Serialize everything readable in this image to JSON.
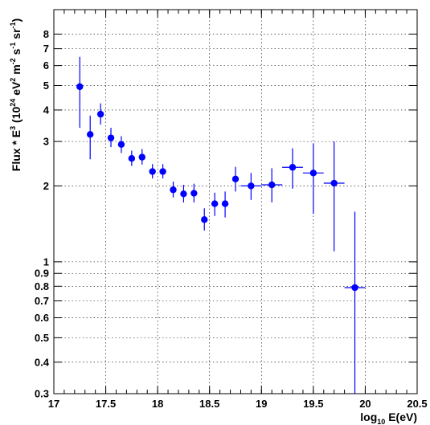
{
  "chart_data": {
    "type": "scatter",
    "xlabel": "log10 E(eV)",
    "xlabel_base": "log",
    "xlabel_sub": "10",
    "xlabel_rest": " E(eV)",
    "ylabel": {
      "prefix": "Flux * E",
      "exp_e": "3",
      "open": " (10",
      "exp_ten": "24",
      "units1": " eV",
      "exp_ev": "2",
      "units2": " m",
      "exp_m": "-2",
      "units3": " s",
      "exp_s": "-1",
      "units4": " sr",
      "exp_sr": "-1",
      "close": ")"
    },
    "xlim": [
      17,
      20.5
    ],
    "ylim": [
      0.3,
      10
    ],
    "yscale": "log",
    "grid": true,
    "marker_color": "#0000ff",
    "x_ticks": [
      {
        "value": 17,
        "label": "17"
      },
      {
        "value": 17.5,
        "label": "17.5"
      },
      {
        "value": 18,
        "label": "18"
      },
      {
        "value": 18.5,
        "label": "18.5"
      },
      {
        "value": 19,
        "label": "19"
      },
      {
        "value": 19.5,
        "label": "19.5"
      },
      {
        "value": 20,
        "label": "20"
      },
      {
        "value": 20.5,
        "label": "20.5"
      }
    ],
    "y_ticks": [
      {
        "value": 0.3,
        "label": "0.3"
      },
      {
        "value": 0.4,
        "label": "0.4"
      },
      {
        "value": 0.5,
        "label": "0.5"
      },
      {
        "value": 0.6,
        "label": "0.6"
      },
      {
        "value": 0.7,
        "label": "0.7"
      },
      {
        "value": 0.8,
        "label": "0.8"
      },
      {
        "value": 0.9,
        "label": "0.9"
      },
      {
        "value": 1,
        "label": "1"
      },
      {
        "value": 2,
        "label": "2"
      },
      {
        "value": 3,
        "label": "3"
      },
      {
        "value": 4,
        "label": "4"
      },
      {
        "value": 5,
        "label": "5"
      },
      {
        "value": 6,
        "label": "6"
      },
      {
        "value": 7,
        "label": "7"
      },
      {
        "value": 8,
        "label": "8"
      }
    ],
    "points": [
      {
        "x": 17.25,
        "y": 4.95,
        "ylo": 3.4,
        "yhi": 6.5,
        "xerr": 0.0
      },
      {
        "x": 17.35,
        "y": 3.2,
        "ylo": 2.55,
        "yhi": 3.8,
        "xerr": 0.0
      },
      {
        "x": 17.45,
        "y": 3.85,
        "ylo": 3.5,
        "yhi": 4.25,
        "xerr": 0.0
      },
      {
        "x": 17.55,
        "y": 3.1,
        "ylo": 2.85,
        "yhi": 3.4,
        "xerr": 0.0
      },
      {
        "x": 17.65,
        "y": 2.92,
        "ylo": 2.7,
        "yhi": 3.15,
        "xerr": 0.0
      },
      {
        "x": 17.75,
        "y": 2.57,
        "ylo": 2.4,
        "yhi": 2.76,
        "xerr": 0.0
      },
      {
        "x": 17.85,
        "y": 2.6,
        "ylo": 2.43,
        "yhi": 2.8,
        "xerr": 0.0
      },
      {
        "x": 17.95,
        "y": 2.28,
        "ylo": 2.14,
        "yhi": 2.44,
        "xerr": 0.0
      },
      {
        "x": 18.05,
        "y": 2.28,
        "ylo": 2.14,
        "yhi": 2.44,
        "xerr": 0.0
      },
      {
        "x": 18.15,
        "y": 1.93,
        "ylo": 1.8,
        "yhi": 2.08,
        "xerr": 0.0
      },
      {
        "x": 18.25,
        "y": 1.86,
        "ylo": 1.72,
        "yhi": 2.02,
        "xerr": 0.0
      },
      {
        "x": 18.35,
        "y": 1.87,
        "ylo": 1.72,
        "yhi": 2.04,
        "xerr": 0.0
      },
      {
        "x": 18.45,
        "y": 1.47,
        "ylo": 1.33,
        "yhi": 1.63,
        "xerr": 0.0
      },
      {
        "x": 18.55,
        "y": 1.7,
        "ylo": 1.52,
        "yhi": 1.88,
        "xerr": 0.0
      },
      {
        "x": 18.65,
        "y": 1.7,
        "ylo": 1.5,
        "yhi": 1.9,
        "xerr": 0.0
      },
      {
        "x": 18.75,
        "y": 2.13,
        "ylo": 1.9,
        "yhi": 2.38,
        "xerr": 0.0
      },
      {
        "x": 18.9,
        "y": 2.0,
        "ylo": 1.76,
        "yhi": 2.25,
        "xerr": 0.1
      },
      {
        "x": 19.1,
        "y": 2.02,
        "ylo": 1.72,
        "yhi": 2.35,
        "xerr": 0.1
      },
      {
        "x": 19.3,
        "y": 2.37,
        "ylo": 1.95,
        "yhi": 2.82,
        "xerr": 0.1
      },
      {
        "x": 19.5,
        "y": 2.25,
        "ylo": 1.55,
        "yhi": 2.95,
        "xerr": 0.1
      },
      {
        "x": 19.7,
        "y": 2.05,
        "ylo": 1.1,
        "yhi": 3.0,
        "xerr": 0.1
      },
      {
        "x": 19.9,
        "y": 0.79,
        "ylo": 0.28,
        "yhi": 1.58,
        "xerr": 0.1
      }
    ]
  }
}
